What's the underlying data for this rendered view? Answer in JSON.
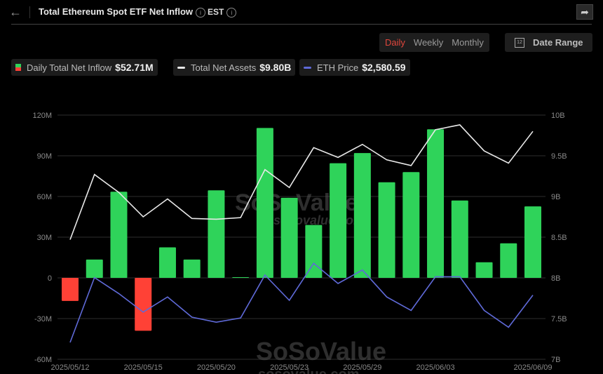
{
  "header": {
    "title": "Total Ethereum Spot ETF Net Inflow",
    "timezone": "EST",
    "back_icon": "arrow-left-icon",
    "share_icon": "share-icon"
  },
  "controls": {
    "periods": [
      {
        "label": "Daily",
        "active": true
      },
      {
        "label": "Weekly",
        "active": false
      },
      {
        "label": "Monthly",
        "active": false
      }
    ],
    "date_range_label": "Date Range",
    "calendar_day": "12"
  },
  "legend": {
    "inflow": {
      "label": "Daily Total Net Inflow",
      "value": "$52.71M"
    },
    "assets": {
      "label": "Total Net Assets",
      "value": "$9.80B"
    },
    "price": {
      "label": "ETH Price",
      "value": "$2,580.59"
    }
  },
  "watermark": {
    "brand": "SoSoValue",
    "site": "sosovalue.com"
  },
  "colors": {
    "positive": "#2fd35a",
    "negative": "#ff4136",
    "assets_line": "#e8e8e8",
    "price_line": "#5f6ad8",
    "active_tab": "#e0463c"
  },
  "chart_data": {
    "type": "bar",
    "title": "Total Ethereum Spot ETF Net Inflow",
    "categories": [
      "2025/05/12",
      "2025/05/13",
      "2025/05/14",
      "2025/05/15",
      "2025/05/16",
      "2025/05/19",
      "2025/05/20",
      "2025/05/21",
      "2025/05/22",
      "2025/05/23",
      "2025/05/27",
      "2025/05/28",
      "2025/05/29",
      "2025/05/30",
      "2025/06/02",
      "2025/06/03",
      "2025/06/04",
      "2025/06/05",
      "2025/06/06",
      "2025/06/09"
    ],
    "x_tick_labels": [
      "2025/05/12",
      "2025/05/15",
      "2025/05/20",
      "2025/05/23",
      "2025/05/29",
      "2025/06/03",
      "2025/06/09"
    ],
    "series": [
      {
        "name": "Daily Total Net Inflow",
        "type": "bar",
        "axis": "left",
        "unit": "M",
        "values": [
          -17.0,
          13.5,
          63.5,
          -39.0,
          22.5,
          13.5,
          64.5,
          0.5,
          110.5,
          59.0,
          39.0,
          84.5,
          92.0,
          70.5,
          78.0,
          109.5,
          57.0,
          11.5,
          25.5,
          52.71
        ]
      },
      {
        "name": "Total Net Assets",
        "type": "line",
        "axis": "right",
        "unit": "B",
        "values": [
          8.47,
          9.27,
          9.05,
          8.75,
          8.97,
          8.73,
          8.72,
          8.74,
          9.33,
          9.11,
          9.6,
          9.48,
          9.64,
          9.45,
          9.38,
          9.82,
          9.88,
          9.56,
          9.41,
          9.8
        ]
      },
      {
        "name": "ETH Price",
        "type": "line",
        "axis": "right-scaled",
        "unit": "USD",
        "values": [
          2300,
          2685,
          2590,
          2480,
          2570,
          2450,
          2420,
          2445,
          2700,
          2550,
          2770,
          2650,
          2730,
          2570,
          2490,
          2690,
          2690,
          2490,
          2390,
          2580.59
        ]
      }
    ],
    "ylabel_left_ticks": [
      "120M",
      "90M",
      "60M",
      "30M",
      "0",
      "-30M",
      "-60M"
    ],
    "ylabel_right_ticks": [
      "10B",
      "9.5B",
      "9B",
      "8.5B",
      "8B",
      "7.5B",
      "7B"
    ],
    "ylim_left": [
      -60,
      120
    ],
    "ylim_right": [
      7,
      10
    ],
    "grid": true,
    "legend_position": "top"
  }
}
